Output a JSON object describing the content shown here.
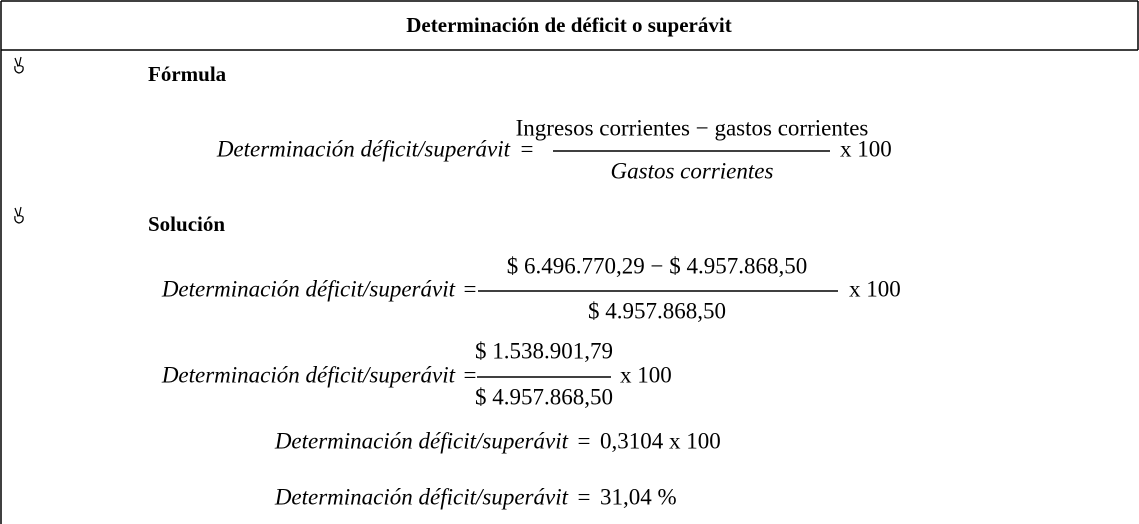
{
  "title": "Determinación de déficit o superávit",
  "sections": [
    {
      "heading": "Fórmula",
      "equations": [
        {
          "lhs": "Determinación déficit/superávit",
          "equals": "=",
          "numerator": "Ingresos corrientes − gastos corrientes",
          "denominator": "Gastos corrientes",
          "factor": "x 100"
        }
      ]
    },
    {
      "heading": "Solución",
      "equations": [
        {
          "lhs": "Determinación déficit/superávit",
          "equals": "=",
          "numerator": "$ 6.496.770,29 − $ 4.957.868,50",
          "denominator": "$ 4.957.868,50",
          "factor": "x 100"
        },
        {
          "lhs": "Determinación déficit/superávit",
          "equals": "=",
          "numerator": "$ 1.538.901,79",
          "denominator": "$ 4.957.868,50",
          "factor": "x 100"
        },
        {
          "lhs": "Determinación déficit/superávit",
          "equals": "=",
          "rhs": "0,3104 x 100"
        },
        {
          "lhs": "Determinación déficit/superávit",
          "equals": "=",
          "rhs": "31,04 %"
        }
      ]
    }
  ]
}
